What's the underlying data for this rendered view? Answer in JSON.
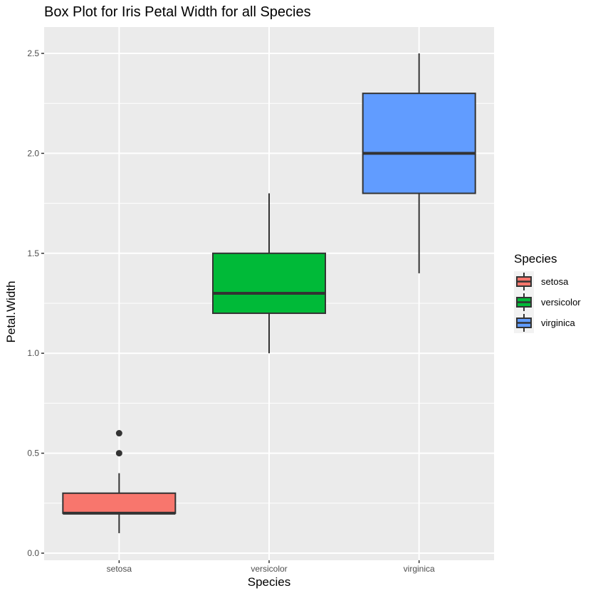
{
  "chart_data": {
    "type": "box",
    "title": "Box Plot for Iris Petal Width for all Species",
    "xlabel": "Species",
    "ylabel": "Petal.Width",
    "categories": [
      "setosa",
      "versicolor",
      "virginica"
    ],
    "ylim": [
      -0.035,
      2.635
    ],
    "yticks": [
      0.0,
      0.5,
      1.0,
      1.5,
      2.0,
      2.5
    ],
    "ytick_labels": [
      "0.0",
      "0.5",
      "1.0",
      "1.5",
      "2.0",
      "2.5"
    ],
    "grid": true,
    "legend": {
      "title": "Species",
      "position": "right",
      "entries": [
        "setosa",
        "versicolor",
        "virginica"
      ]
    },
    "series": [
      {
        "name": "setosa",
        "color": "#F8766D",
        "whisker_low": 0.1,
        "q1": 0.2,
        "median": 0.2,
        "q3": 0.3,
        "whisker_high": 0.4,
        "outliers": [
          0.5,
          0.6
        ]
      },
      {
        "name": "versicolor",
        "color": "#00BA38",
        "whisker_low": 1.0,
        "q1": 1.2,
        "median": 1.3,
        "q3": 1.5,
        "whisker_high": 1.8,
        "outliers": []
      },
      {
        "name": "virginica",
        "color": "#619CFF",
        "whisker_low": 1.4,
        "q1": 1.8,
        "median": 2.0,
        "q3": 2.3,
        "whisker_high": 2.5,
        "outliers": []
      }
    ]
  },
  "colors": {
    "panel_bg": "#EBEBEB",
    "grid": "#FFFFFF",
    "box_line": "#333333",
    "tick_text": "#4D4D4D"
  }
}
